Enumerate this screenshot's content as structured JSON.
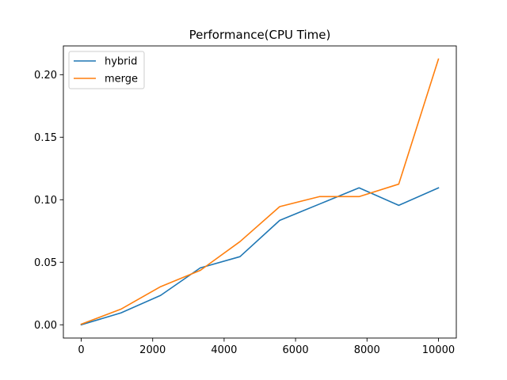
{
  "chart_data": {
    "type": "line",
    "title": "Performance(CPU Time)",
    "xlabel": "",
    "ylabel": "",
    "xlim": [
      -500,
      10500
    ],
    "ylim": [
      -0.0106,
      0.223
    ],
    "xticks": [
      0,
      2000,
      4000,
      6000,
      8000,
      10000
    ],
    "xtick_labels": [
      "0",
      "2000",
      "4000",
      "6000",
      "8000",
      "10000"
    ],
    "yticks": [
      0.0,
      0.05,
      0.1,
      0.15,
      0.2
    ],
    "ytick_labels": [
      "0.00",
      "0.05",
      "0.10",
      "0.15",
      "0.20"
    ],
    "grid": false,
    "legend": {
      "placement": "upper-left"
    },
    "x": [
      0,
      1111,
      2222,
      3333,
      4444,
      5556,
      6667,
      7778,
      8889,
      10000
    ],
    "series": [
      {
        "name": "hybrid",
        "color": "#1f77b4",
        "values": [
          0.0,
          0.0095,
          0.0235,
          0.0455,
          0.0545,
          0.0835,
          0.0965,
          0.1095,
          0.0955,
          0.1095
        ]
      },
      {
        "name": "merge",
        "color": "#ff7f0e",
        "values": [
          0.0005,
          0.0125,
          0.0305,
          0.0435,
          0.0665,
          0.0945,
          0.1025,
          0.1025,
          0.1125,
          0.2125
        ]
      }
    ]
  }
}
